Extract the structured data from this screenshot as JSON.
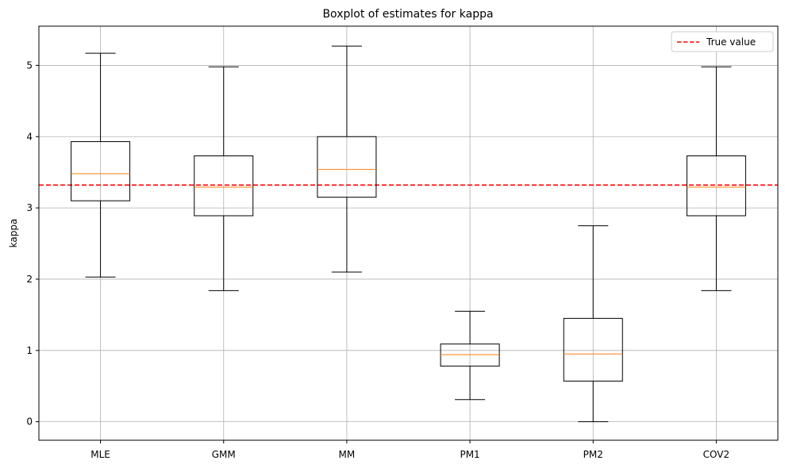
{
  "chart_data": {
    "type": "box",
    "title": "Boxplot of estimates for kappa",
    "xlabel": "",
    "ylabel": "kappa",
    "categories": [
      "MLE",
      "GMM",
      "MM",
      "PM1",
      "PM2",
      "COV2"
    ],
    "boxes": [
      {
        "whislo": 2.03,
        "q1": 3.1,
        "median": 3.48,
        "q3": 3.93,
        "whishi": 5.17
      },
      {
        "whislo": 1.84,
        "q1": 2.89,
        "median": 3.29,
        "q3": 3.73,
        "whishi": 4.98
      },
      {
        "whislo": 2.1,
        "q1": 3.15,
        "median": 3.54,
        "q3": 4.0,
        "whishi": 5.27
      },
      {
        "whislo": 0.31,
        "q1": 0.78,
        "median": 0.94,
        "q3": 1.09,
        "whishi": 1.55
      },
      {
        "whislo": 0.0,
        "q1": 0.57,
        "median": 0.95,
        "q3": 1.45,
        "whishi": 2.75
      },
      {
        "whislo": 1.84,
        "q1": 2.89,
        "median": 3.29,
        "q3": 3.73,
        "whishi": 4.98
      }
    ],
    "reference_line": {
      "label": "True value",
      "y": 3.32,
      "color": "#ff0000",
      "style": "dashed"
    },
    "yticks": [
      "0",
      "1",
      "2",
      "3",
      "4",
      "5"
    ],
    "ylim": [
      -0.26,
      5.55
    ],
    "grid": true,
    "legend": {
      "entries": [
        "True value"
      ],
      "placement": "top-right"
    },
    "colors": {
      "box": "#000000",
      "median": "#ff7f0e",
      "grid": "#b0b0b0",
      "reference": "#ff0000"
    }
  }
}
